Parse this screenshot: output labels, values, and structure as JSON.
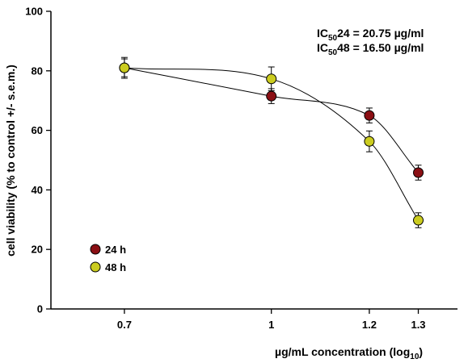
{
  "chart_data": {
    "type": "scatter",
    "xlabel": "µg/mL  concentration (log",
    "xlabel_sub": "10",
    "xlabel_end": ")",
    "ylabel": "cell viability (% to control +/- s.e.m.)",
    "xlim": [
      0.55,
      1.38
    ],
    "ylim": [
      0,
      100
    ],
    "x_ticks": [
      0.7,
      1.0,
      1.2,
      1.3
    ],
    "x_tick_labels": [
      "0.7",
      "1",
      "1.2",
      "1.3"
    ],
    "y_ticks": [
      0,
      20,
      40,
      60,
      80,
      100
    ],
    "y_tick_labels": [
      "0",
      "20",
      "40",
      "60",
      "80",
      "100"
    ],
    "grid": false,
    "legend_position": "bottom-left",
    "annotations": [
      {
        "prefix": "IC",
        "sub": "50",
        "text": "24 = 20.75 µg/ml"
      },
      {
        "prefix": "IC",
        "sub": "50",
        "text": "48 = 16.50 µg/ml"
      }
    ],
    "series": [
      {
        "name": "24 h",
        "color": "#8b0f14",
        "x": [
          0.7,
          1.0,
          1.2,
          1.3
        ],
        "y": [
          81,
          71.5,
          65,
          45.8
        ],
        "err": [
          3,
          2.5,
          2.5,
          2.5
        ]
      },
      {
        "name": "48 h",
        "color": "#cbcc1f",
        "x": [
          0.7,
          1.0,
          1.2,
          1.3
        ],
        "y": [
          81,
          77.3,
          56.3,
          29.8
        ],
        "err": [
          3.5,
          4,
          3.5,
          2.5
        ]
      }
    ]
  }
}
